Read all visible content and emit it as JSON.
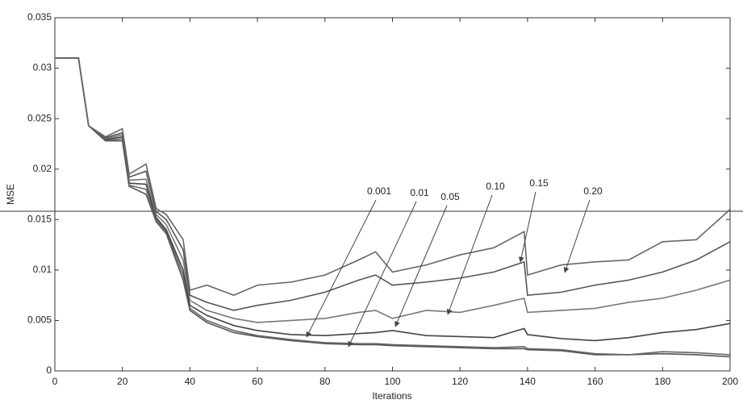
{
  "chart_data": {
    "type": "line",
    "x_label": "Iterations",
    "y_label": "MSE",
    "x": [
      0,
      7,
      10,
      15,
      20,
      22,
      27,
      30,
      33,
      38,
      40,
      45,
      53,
      60,
      70,
      80,
      90,
      95,
      100,
      110,
      120,
      130,
      139,
      140,
      150,
      160,
      170,
      180,
      190,
      200
    ],
    "series": [
      {
        "name": "0.001",
        "color": "#555555",
        "values": [
          0.031,
          0.031,
          0.0243,
          0.0228,
          0.0228,
          0.0183,
          0.0175,
          0.0148,
          0.0136,
          0.009,
          0.006,
          0.0048,
          0.0038,
          0.0034,
          0.003,
          0.0027,
          0.0026,
          0.0026,
          0.0025,
          0.0024,
          0.0023,
          0.0022,
          0.0022,
          0.0021,
          0.002,
          0.0016,
          0.0016,
          0.0017,
          0.0016,
          0.0014
        ]
      },
      {
        "name": "0.01",
        "color": "#666666",
        "values": [
          0.031,
          0.031,
          0.0243,
          0.0228,
          0.023,
          0.0184,
          0.018,
          0.015,
          0.0138,
          0.0095,
          0.0062,
          0.005,
          0.004,
          0.0035,
          0.0031,
          0.0028,
          0.0027,
          0.0027,
          0.0026,
          0.0025,
          0.0024,
          0.0023,
          0.0024,
          0.0022,
          0.0021,
          0.0017,
          0.0016,
          0.0019,
          0.0018,
          0.0016
        ]
      },
      {
        "name": "0.05",
        "color": "#444444",
        "values": [
          0.031,
          0.031,
          0.0243,
          0.0229,
          0.0232,
          0.0186,
          0.0185,
          0.0152,
          0.014,
          0.01,
          0.0065,
          0.0055,
          0.0045,
          0.004,
          0.0036,
          0.0035,
          0.0037,
          0.0038,
          0.004,
          0.0035,
          0.0034,
          0.0033,
          0.0042,
          0.0036,
          0.0032,
          0.003,
          0.0033,
          0.0038,
          0.0041,
          0.0047
        ]
      },
      {
        "name": "0.10",
        "color": "#777777",
        "values": [
          0.031,
          0.031,
          0.0243,
          0.023,
          0.0234,
          0.0189,
          0.019,
          0.0155,
          0.0145,
          0.011,
          0.007,
          0.006,
          0.0052,
          0.0048,
          0.005,
          0.0052,
          0.0058,
          0.006,
          0.0052,
          0.006,
          0.0058,
          0.0065,
          0.0072,
          0.0058,
          0.006,
          0.0062,
          0.0068,
          0.0072,
          0.008,
          0.009
        ]
      },
      {
        "name": "0.15",
        "color": "#555555",
        "values": [
          0.031,
          0.031,
          0.0243,
          0.0231,
          0.0236,
          0.0192,
          0.0198,
          0.0158,
          0.015,
          0.012,
          0.0075,
          0.0068,
          0.006,
          0.0065,
          0.007,
          0.0078,
          0.009,
          0.0095,
          0.0085,
          0.0088,
          0.0092,
          0.0098,
          0.0108,
          0.0075,
          0.0078,
          0.0085,
          0.009,
          0.0098,
          0.011,
          0.0128
        ]
      },
      {
        "name": "0.20",
        "color": "#666666",
        "values": [
          0.031,
          0.031,
          0.0243,
          0.0232,
          0.024,
          0.0195,
          0.0205,
          0.0161,
          0.0155,
          0.013,
          0.008,
          0.0085,
          0.0075,
          0.0085,
          0.0088,
          0.0095,
          0.011,
          0.0118,
          0.0098,
          0.0105,
          0.0115,
          0.0122,
          0.0138,
          0.0095,
          0.0105,
          0.0108,
          0.011,
          0.0128,
          0.013,
          0.016
        ]
      }
    ],
    "xlim": [
      0,
      200
    ],
    "xticks": [
      0,
      20,
      40,
      60,
      80,
      100,
      120,
      140,
      160,
      180,
      200
    ],
    "ylim": [
      0,
      0.035
    ],
    "yticks": [
      0,
      0.005,
      0.01,
      0.015,
      0.02,
      0.025,
      0.03,
      0.035
    ],
    "grid": false
  }
}
